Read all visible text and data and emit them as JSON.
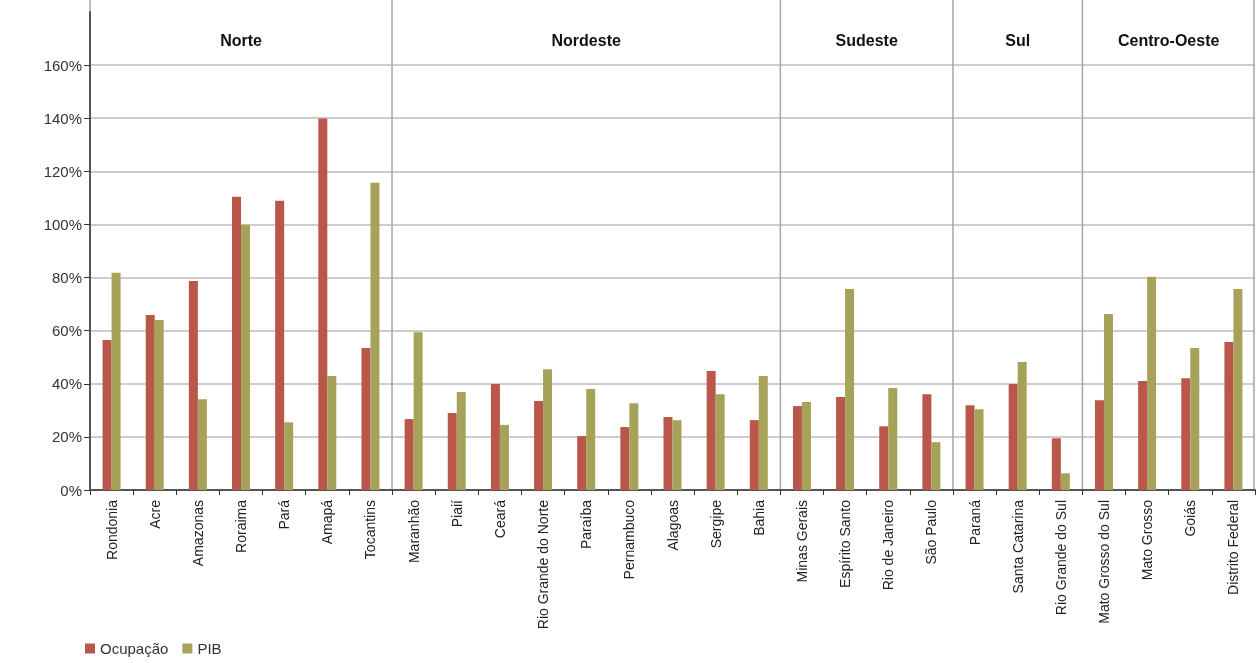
{
  "chart_data": {
    "type": "bar",
    "categories": [
      "Rondonia",
      "Acre",
      "Amazonas",
      "Roraima",
      "Pará",
      "Amapá",
      "Tocantins",
      "Maranhão",
      "Piaií",
      "Ceará",
      "Rio Grande do Norte",
      "Paraíba",
      "Pernambuco",
      "Alagoas",
      "Sergipe",
      "Bahia",
      "Minas Gerais",
      "Espírito Santo",
      "Rio de Janeiro",
      "São Paulo",
      "Paraná",
      "Santa Catarina",
      "Rio Grande do Sul",
      "Mato Grosso do Sul",
      "Mato Grosso",
      "Goiás",
      "Distrito Federal"
    ],
    "series": [
      {
        "name": "Ocupação",
        "color": "#b9574a",
        "values": [
          56.5,
          65.9,
          78.7,
          110.4,
          108.9,
          139.9,
          53.5,
          26.7,
          29.0,
          39.9,
          33.5,
          20.3,
          23.7,
          27.5,
          44.8,
          26.3,
          31.6,
          35.0,
          24.0,
          36.1,
          31.9,
          39.9,
          19.5,
          33.8,
          41.0,
          42.1,
          55.7
        ]
      },
      {
        "name": "PIB",
        "color": "#a7a259",
        "values": [
          81.8,
          64.0,
          34.2,
          99.9,
          25.5,
          42.9,
          115.7,
          59.4,
          36.9,
          24.5,
          45.5,
          38.0,
          32.7,
          26.3,
          36.1,
          42.9,
          33.1,
          75.7,
          38.4,
          18.0,
          30.4,
          48.2,
          6.3,
          66.3,
          80.3,
          53.5,
          75.7
        ]
      }
    ],
    "ylim": [
      0,
      180
    ],
    "yticks": [
      {
        "value": 0,
        "label": "0%"
      },
      {
        "value": 20,
        "label": "20%"
      },
      {
        "value": 40,
        "label": "40%"
      },
      {
        "value": 60,
        "label": "60%"
      },
      {
        "value": 80,
        "label": "80%"
      },
      {
        "value": 100,
        "label": "100%"
      },
      {
        "value": 120,
        "label": "120%"
      },
      {
        "value": 140,
        "label": "140%"
      },
      {
        "value": 160,
        "label": "160%"
      }
    ],
    "annotations": [
      "Norte",
      "Nordeste",
      "Sudeste",
      "Sul",
      "Centro-Oeste"
    ],
    "grid": "y",
    "legend": "bottom left"
  }
}
